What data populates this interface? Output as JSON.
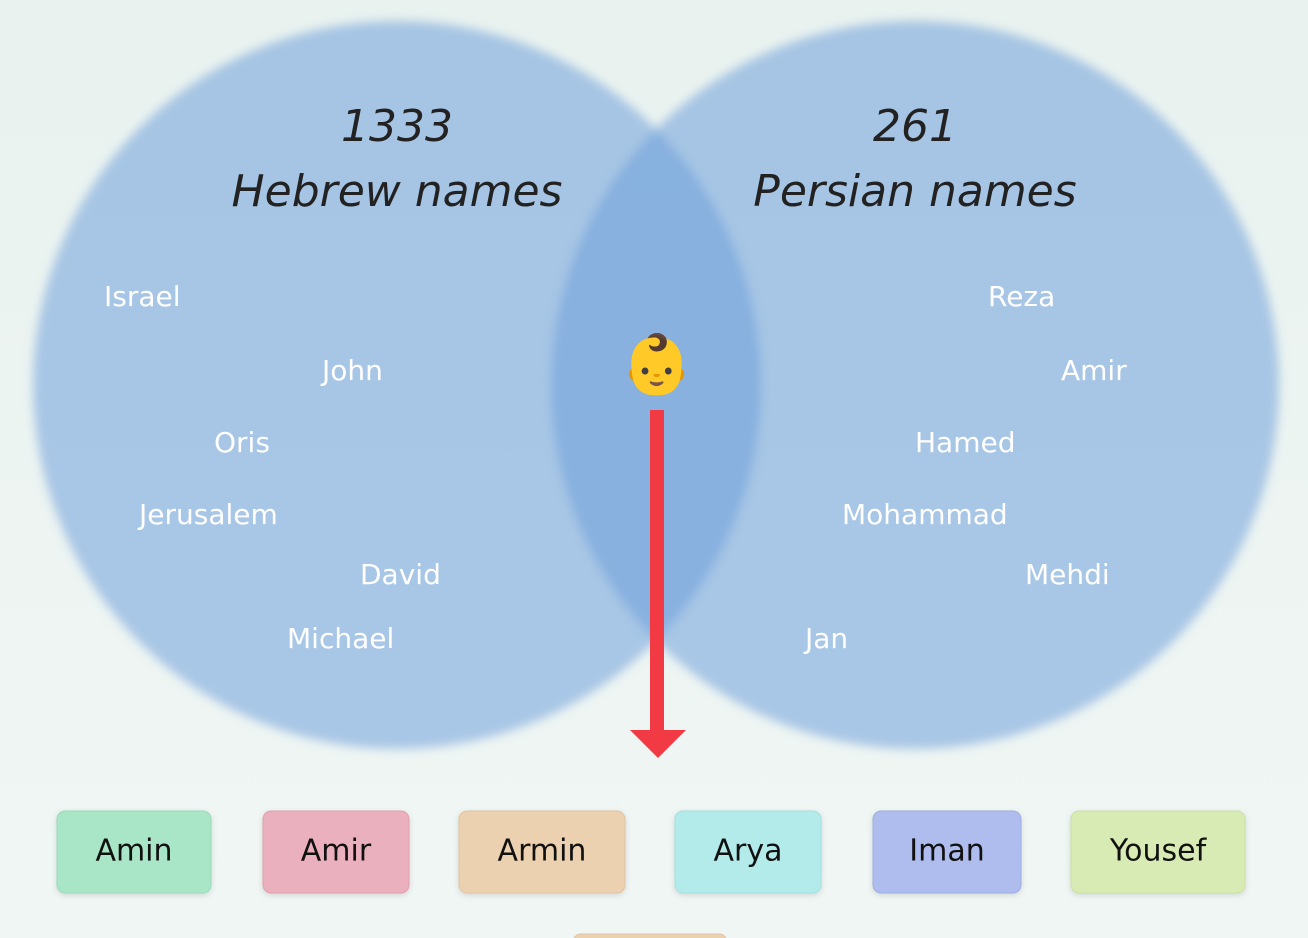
{
  "left": {
    "count": 1333,
    "label": "Hebrew names",
    "names": [
      "Israel",
      "John",
      "Oris",
      "Jerusalem",
      "David",
      "Michael"
    ]
  },
  "right": {
    "count": 261,
    "label": "Persian names",
    "names": [
      "Reza",
      "Amir",
      "Hamed",
      "Mohammad",
      "Mehdi",
      "Jan"
    ]
  },
  "center_icon": "👶",
  "buttons": [
    "Amin",
    "Amir",
    "Armin",
    "Arya",
    "Iman",
    "Yousef"
  ]
}
